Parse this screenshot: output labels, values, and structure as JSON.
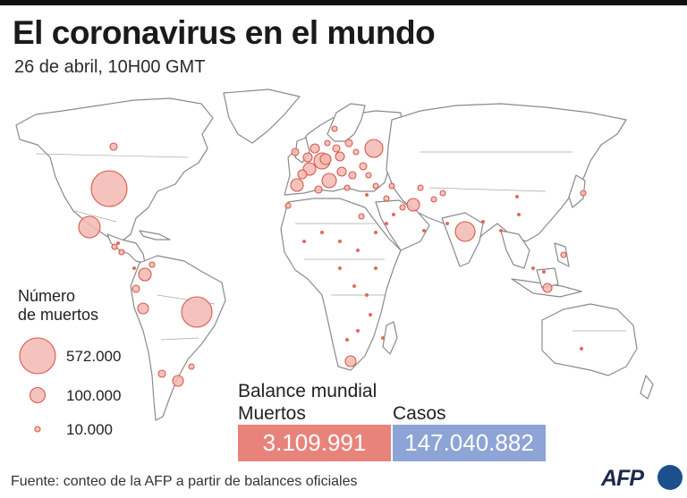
{
  "title": "El coronavirus en el mundo",
  "subtitle": "26 de abril, 10H00 GMT",
  "legend": {
    "title_line1": "Número",
    "title_line2": "de muertos",
    "items": [
      {
        "label": "572.000",
        "value": 572000
      },
      {
        "label": "100.000",
        "value": 100000
      },
      {
        "label": "10.000",
        "value": 10000
      }
    ]
  },
  "balance": {
    "title": "Balance mundial",
    "deaths_label": "Muertos",
    "deaths_value": "3.109.991",
    "cases_label": "Casos",
    "cases_value": "147.040.882"
  },
  "source": "Fuente: conteo de la AFP a partir de balances oficiales",
  "brand": "AFP",
  "colors": {
    "bubble_fill": "#f2b9b2",
    "bubble_stroke": "#d9584c",
    "deaths_box": "#e8837b",
    "cases_box": "#8ea4d6",
    "land_stroke": "#8a8a8a"
  }
}
